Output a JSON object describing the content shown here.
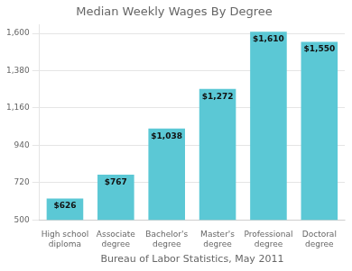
{
  "chart_data": {
    "type": "bar",
    "title": "Median Weekly Wages By Degree",
    "xlabel": "Bureau of Labor Statistics, May 2011",
    "categories": [
      "High school\ndiploma",
      "Associate\ndegree",
      "Bachelor's\ndegree",
      "Master's\ndegree",
      "Professional\ndegree",
      "Doctoral\ndegree"
    ],
    "values": [
      626,
      767,
      1038,
      1272,
      1610,
      1550
    ],
    "value_labels": [
      "$626",
      "$767",
      "$1,038",
      "$1,272",
      "$1,610",
      "$1,550"
    ],
    "data_labels": true,
    "color": "#5bc8d5",
    "ylim": [
      500,
      1650
    ],
    "yticks": [
      500,
      720,
      940,
      {
        "value": 1160,
        "label": "1,160"
      },
      {
        "value": 1380,
        "label": "1,380"
      },
      {
        "value": 1600,
        "label": "1,600"
      }
    ],
    "grid": true
  }
}
